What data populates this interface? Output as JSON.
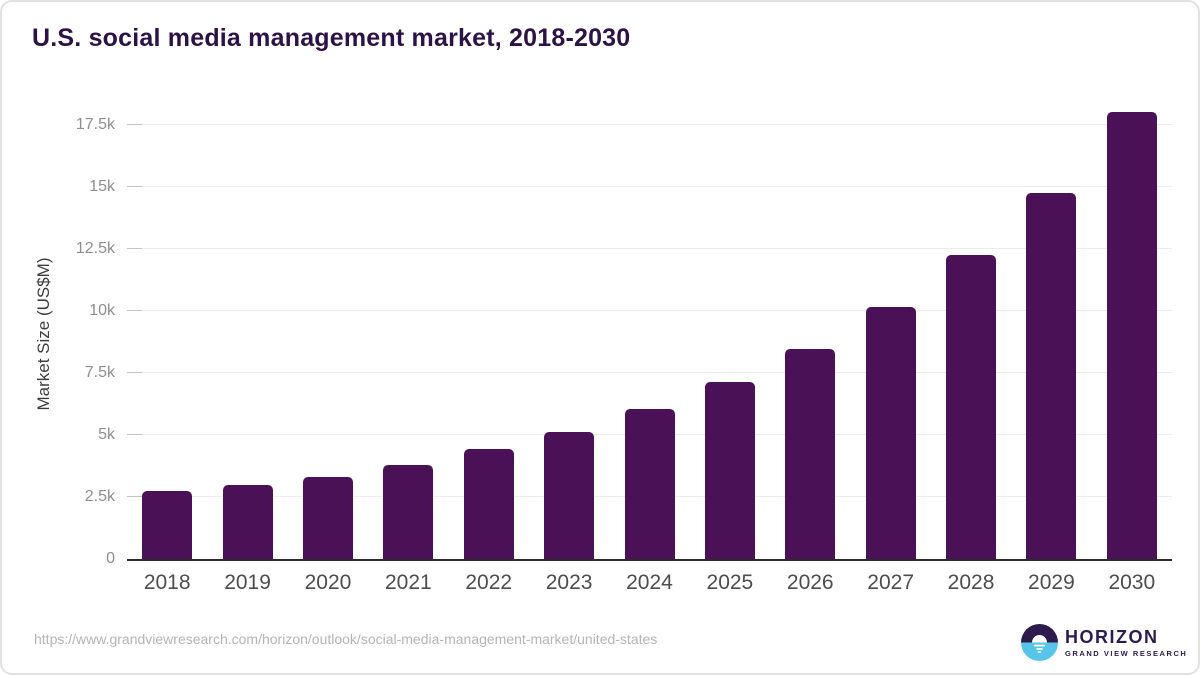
{
  "title": "U.S. social media management market, 2018-2030",
  "chart_data": {
    "type": "bar",
    "categories": [
      "2018",
      "2019",
      "2020",
      "2021",
      "2022",
      "2023",
      "2024",
      "2025",
      "2026",
      "2027",
      "2028",
      "2029",
      "2030"
    ],
    "values": [
      2750,
      2980,
      3300,
      3780,
      4420,
      5130,
      6040,
      7130,
      8470,
      10150,
      12260,
      14770,
      18040
    ],
    "title": "U.S. social media management market, 2018-2030",
    "xlabel": "",
    "ylabel": "Market Size (US$M)",
    "ylim": [
      0,
      17500
    ],
    "yticks": [
      {
        "value": 0,
        "label": "0"
      },
      {
        "value": 2500,
        "label": "2.5k"
      },
      {
        "value": 5000,
        "label": "5k"
      },
      {
        "value": 7500,
        "label": "7.5k"
      },
      {
        "value": 10000,
        "label": "10k"
      },
      {
        "value": 12500,
        "label": "12.5k"
      },
      {
        "value": 15000,
        "label": "15k"
      },
      {
        "value": 17500,
        "label": "17.5k"
      }
    ],
    "grid": true,
    "legend": false,
    "bar_color": "#4a1157"
  },
  "footer": {
    "source_url": "https://www.grandviewresearch.com/horizon/outlook/social-media-management-market/united-states",
    "logo": {
      "name": "HORIZON",
      "subtitle": "GRAND VIEW RESEARCH",
      "icon": "horizon-sunset-icon",
      "purple": "#2d1b4e",
      "cyan": "#57c4e9"
    }
  }
}
